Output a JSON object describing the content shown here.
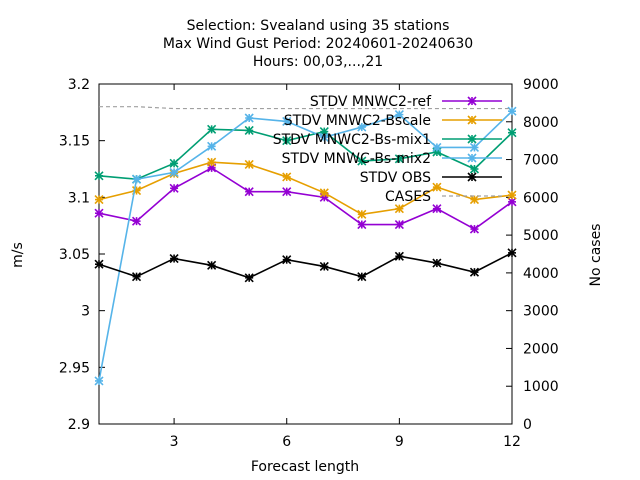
{
  "chart_data": {
    "type": "line",
    "title_lines": [
      "Selection: Svealand using     35 stations",
      "Max Wind Gust   Period: 20240601-20240630",
      "Hours: 00,03,...,21"
    ],
    "xlabel": "Forecast length",
    "ylabel": "m/s",
    "y2label": "No cases",
    "xlim": [
      1,
      12
    ],
    "ylim": [
      2.9,
      3.2
    ],
    "y2lim": [
      0,
      9000
    ],
    "xticks": [
      3,
      6,
      9,
      12
    ],
    "yticks": [
      2.9,
      2.95,
      3,
      3.05,
      3.1,
      3.15,
      3.2
    ],
    "ytick_labels": [
      "2.9",
      "2.95",
      "3",
      "3.05",
      "3.1",
      "3.15",
      "3.2"
    ],
    "y2ticks": [
      0,
      1000,
      2000,
      3000,
      4000,
      5000,
      6000,
      7000,
      8000,
      9000
    ],
    "legend_position": "top-right",
    "x": [
      1,
      2,
      3,
      4,
      5,
      6,
      7,
      8,
      9,
      10,
      11,
      12
    ],
    "series": [
      {
        "name": "STDV MNWC2-ref",
        "color": "#9400d3",
        "axis": "y1",
        "values": [
          3.086,
          3.079,
          3.108,
          3.126,
          3.105,
          3.105,
          3.1,
          3.076,
          3.076,
          3.09,
          3.072,
          3.096
        ]
      },
      {
        "name": "STDV MNWC2-Bscale",
        "color": "#e69f00",
        "axis": "y1",
        "values": [
          3.098,
          3.106,
          3.121,
          3.131,
          3.129,
          3.118,
          3.104,
          3.085,
          3.09,
          3.109,
          3.098,
          3.102
        ]
      },
      {
        "name": "STDV MNWC2-Bs-mix1",
        "color": "#009e73",
        "axis": "y1",
        "values": [
          3.119,
          3.116,
          3.13,
          3.16,
          3.159,
          3.15,
          3.158,
          3.132,
          3.134,
          3.14,
          3.125,
          3.157
        ]
      },
      {
        "name": "STDV MNWC-Bs-mix2",
        "color": "#56b4e9",
        "axis": "y1",
        "values": [
          2.938,
          3.116,
          3.122,
          3.145,
          3.17,
          3.167,
          3.153,
          3.162,
          3.173,
          3.144,
          3.144,
          3.176
        ]
      },
      {
        "name": "STDV OBS",
        "color": "#000000",
        "axis": "y1",
        "values": [
          3.041,
          3.03,
          3.046,
          3.04,
          3.029,
          3.045,
          3.039,
          3.03,
          3.048,
          3.042,
          3.034,
          3.051
        ]
      },
      {
        "name": "CASES",
        "color": "#a0a0a0",
        "axis": "y2",
        "dashed": true,
        "values": [
          8400,
          8400,
          8350,
          8350,
          8350,
          8350,
          8350,
          8350,
          8350,
          8350,
          8350,
          8350
        ]
      }
    ]
  }
}
